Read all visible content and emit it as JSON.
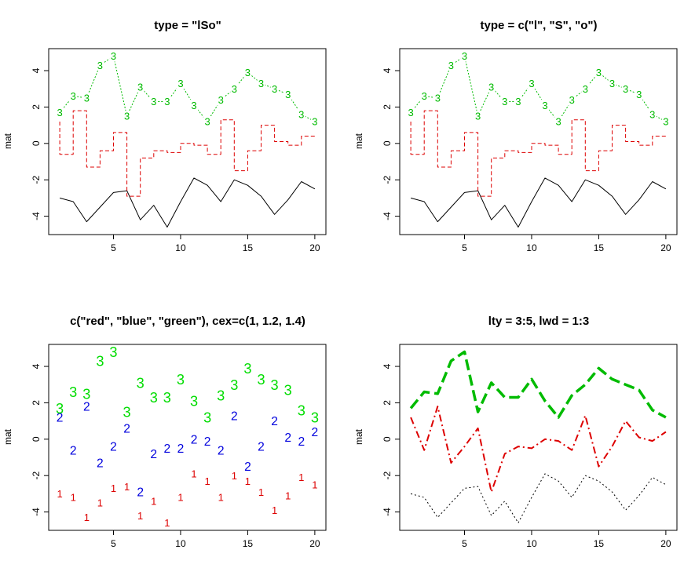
{
  "chart_data": [
    {
      "type": "line",
      "title": "type = \"lSo\"",
      "ylabel": "mat",
      "xlim": [
        1,
        20
      ],
      "ylim": [
        -4.6,
        4.8
      ],
      "xticks": [
        5,
        10,
        15,
        20
      ],
      "yticks": [
        -4,
        -2,
        0,
        2,
        4
      ],
      "x": [
        1,
        2,
        3,
        4,
        5,
        6,
        7,
        8,
        9,
        10,
        11,
        12,
        13,
        14,
        15,
        16,
        17,
        18,
        19,
        20
      ],
      "series": [
        {
          "render": "l",
          "color": "#000000",
          "dash": "",
          "width": 1,
          "symbol": "",
          "values": [
            -3.0,
            -3.2,
            -4.3,
            -3.5,
            -2.7,
            -2.6,
            -4.2,
            -3.4,
            -4.6,
            -3.2,
            -1.9,
            -2.3,
            -3.2,
            -2.0,
            -2.3,
            -2.9,
            -3.9,
            -3.1,
            -2.1,
            -2.5
          ]
        },
        {
          "render": "S",
          "color": "#dd0000",
          "dash": "5,3",
          "width": 1,
          "symbol": "",
          "values": [
            1.2,
            -0.6,
            1.8,
            -1.3,
            -0.4,
            0.6,
            -2.9,
            -0.8,
            -0.4,
            -0.5,
            0.0,
            -0.1,
            -0.6,
            1.3,
            -1.5,
            -0.4,
            1.0,
            0.1,
            -0.1,
            0.4
          ]
        },
        {
          "render": "o",
          "color": "#00bb00",
          "dash": "2,2",
          "width": 1,
          "symbol": "3",
          "values": [
            1.7,
            2.6,
            2.5,
            4.3,
            4.8,
            1.5,
            3.1,
            2.3,
            2.3,
            3.3,
            2.1,
            1.2,
            2.4,
            3.0,
            3.9,
            3.3,
            3.0,
            2.7,
            1.6,
            1.2
          ]
        }
      ]
    },
    {
      "type": "line",
      "title": "type = c(\"l\", \"S\", \"o\")",
      "ylabel": "mat",
      "xlim": [
        1,
        20
      ],
      "ylim": [
        -4.6,
        4.8
      ],
      "xticks": [
        5,
        10,
        15,
        20
      ],
      "yticks": [
        -4,
        -2,
        0,
        2,
        4
      ],
      "x": [
        1,
        2,
        3,
        4,
        5,
        6,
        7,
        8,
        9,
        10,
        11,
        12,
        13,
        14,
        15,
        16,
        17,
        18,
        19,
        20
      ],
      "series": [
        {
          "render": "l",
          "color": "#000000",
          "dash": "",
          "width": 1,
          "symbol": "",
          "values": [
            -3.0,
            -3.2,
            -4.3,
            -3.5,
            -2.7,
            -2.6,
            -4.2,
            -3.4,
            -4.6,
            -3.2,
            -1.9,
            -2.3,
            -3.2,
            -2.0,
            -2.3,
            -2.9,
            -3.9,
            -3.1,
            -2.1,
            -2.5
          ]
        },
        {
          "render": "S",
          "color": "#dd0000",
          "dash": "5,3",
          "width": 1,
          "symbol": "",
          "values": [
            1.2,
            -0.6,
            1.8,
            -1.3,
            -0.4,
            0.6,
            -2.9,
            -0.8,
            -0.4,
            -0.5,
            0.0,
            -0.1,
            -0.6,
            1.3,
            -1.5,
            -0.4,
            1.0,
            0.1,
            -0.1,
            0.4
          ]
        },
        {
          "render": "o",
          "color": "#00bb00",
          "dash": "2,2",
          "width": 1,
          "symbol": "3",
          "values": [
            1.7,
            2.6,
            2.5,
            4.3,
            4.8,
            1.5,
            3.1,
            2.3,
            2.3,
            3.3,
            2.1,
            1.2,
            2.4,
            3.0,
            3.9,
            3.3,
            3.0,
            2.7,
            1.6,
            1.2
          ]
        }
      ]
    },
    {
      "type": "scatter",
      "title": "c(\"red\", \"blue\", \"green\"), cex=c(1, 1.2, 1.4)",
      "ylabel": "mat",
      "xlim": [
        1,
        20
      ],
      "ylim": [
        -4.6,
        4.8
      ],
      "xticks": [
        5,
        10,
        15,
        20
      ],
      "yticks": [
        -4,
        -2,
        0,
        2,
        4
      ],
      "x": [
        1,
        2,
        3,
        4,
        5,
        6,
        7,
        8,
        9,
        10,
        11,
        12,
        13,
        14,
        15,
        16,
        17,
        18,
        19,
        20
      ],
      "series": [
        {
          "render": "p",
          "color": "#dd0000",
          "cex": 1.0,
          "symbol": "1",
          "values": [
            -3.0,
            -3.2,
            -4.3,
            -3.5,
            -2.7,
            -2.6,
            -4.2,
            -3.4,
            -4.6,
            -3.2,
            -1.9,
            -2.3,
            -3.2,
            -2.0,
            -2.3,
            -2.9,
            -3.9,
            -3.1,
            -2.1,
            -2.5
          ]
        },
        {
          "render": "p",
          "color": "#0000dd",
          "cex": 1.2,
          "symbol": "2",
          "values": [
            1.2,
            -0.6,
            1.8,
            -1.3,
            -0.4,
            0.6,
            -2.9,
            -0.8,
            -0.5,
            -0.5,
            0.0,
            -0.1,
            -0.6,
            1.3,
            -1.5,
            -0.4,
            1.0,
            0.1,
            -0.1,
            0.4
          ]
        },
        {
          "render": "p",
          "color": "#00dd00",
          "cex": 1.4,
          "symbol": "3",
          "values": [
            1.7,
            2.6,
            2.5,
            4.3,
            4.8,
            1.5,
            3.1,
            2.3,
            2.3,
            3.3,
            2.1,
            1.2,
            2.4,
            3.0,
            3.9,
            3.3,
            3.0,
            2.7,
            1.6,
            1.2
          ]
        }
      ]
    },
    {
      "type": "line",
      "title": "lty = 3:5, lwd = 1:3",
      "ylabel": "mat",
      "xlim": [
        1,
        20
      ],
      "ylim": [
        -4.6,
        4.8
      ],
      "xticks": [
        5,
        10,
        15,
        20
      ],
      "yticks": [
        -4,
        -2,
        0,
        2,
        4
      ],
      "x": [
        1,
        2,
        3,
        4,
        5,
        6,
        7,
        8,
        9,
        10,
        11,
        12,
        13,
        14,
        15,
        16,
        17,
        18,
        19,
        20
      ],
      "series": [
        {
          "render": "l",
          "color": "#000000",
          "dash": "2,3",
          "width": 1,
          "symbol": "",
          "values": [
            -3.0,
            -3.2,
            -4.3,
            -3.5,
            -2.7,
            -2.6,
            -4.2,
            -3.4,
            -4.6,
            -3.2,
            -1.9,
            -2.3,
            -3.2,
            -2.0,
            -2.3,
            -2.9,
            -3.9,
            -3.1,
            -2.1,
            -2.5
          ]
        },
        {
          "render": "l",
          "color": "#dd0000",
          "dash": "9,4,2,4",
          "width": 2,
          "symbol": "",
          "values": [
            1.2,
            -0.6,
            1.8,
            -1.3,
            -0.4,
            0.6,
            -2.9,
            -0.8,
            -0.4,
            -0.5,
            0.0,
            -0.1,
            -0.6,
            1.3,
            -1.5,
            -0.4,
            1.0,
            0.1,
            -0.1,
            0.4
          ]
        },
        {
          "render": "l",
          "color": "#00bb00",
          "dash": "14,6",
          "width": 3.5,
          "symbol": "",
          "values": [
            1.7,
            2.6,
            2.5,
            4.3,
            4.8,
            1.5,
            3.1,
            2.3,
            2.3,
            3.3,
            2.1,
            1.2,
            2.4,
            3.0,
            3.9,
            3.3,
            3.0,
            2.7,
            1.6,
            1.2
          ]
        }
      ]
    }
  ]
}
